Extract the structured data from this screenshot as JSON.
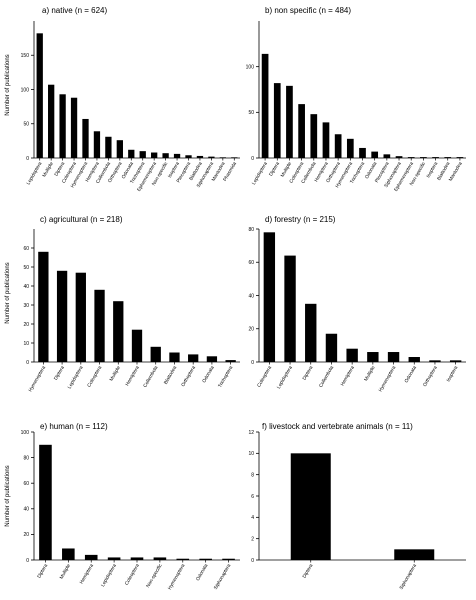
{
  "figure": {
    "ylabel": "Number of publications"
  },
  "colors": {
    "bar": "#000000",
    "axis": "#000000",
    "background": "#ffffff"
  },
  "chart_data": [
    {
      "id": "a",
      "type": "bar",
      "title": "a) native (n = 624)",
      "ylabel": "Number of publications",
      "ylim": [
        0,
        200
      ],
      "yticks": [
        0,
        50,
        100,
        150
      ],
      "categories": [
        "Lepidoptera",
        "Multiple",
        "Diptera",
        "Coleoptera",
        "Hymenoptera",
        "Hemiptera",
        "Collembola",
        "Orthoptera",
        "Odonata",
        "Trichoptera",
        "Ephemeroptera",
        "Non-specific",
        "Isoptera",
        "Plecoptera",
        "Blattodea",
        "Siphonaptera",
        "Mantodea",
        "Phasmida"
      ],
      "values": [
        182,
        107,
        93,
        88,
        57,
        39,
        31,
        26,
        12,
        10,
        8,
        7,
        6,
        4,
        3,
        2,
        1,
        1
      ]
    },
    {
      "id": "b",
      "type": "bar",
      "title": "b) non specific (n = 484)",
      "ylabel": "",
      "ylim": [
        0,
        150
      ],
      "yticks": [
        0,
        50,
        100
      ],
      "categories": [
        "Lepidoptera",
        "Diptera",
        "Multiple",
        "Coleoptera",
        "Collembola",
        "Hemiptera",
        "Orthoptera",
        "Hymenoptera",
        "Trichoptera",
        "Odonata",
        "Plecoptera",
        "Siphonaptera",
        "Ephemeroptera",
        "Non-specific",
        "Isoptera",
        "Blattodea",
        "Mantodea"
      ],
      "values": [
        114,
        82,
        79,
        59,
        48,
        39,
        26,
        21,
        11,
        7,
        4,
        2,
        1,
        1,
        1,
        1,
        1
      ]
    },
    {
      "id": "c",
      "type": "bar",
      "title": "c) agricultural (n = 218)",
      "ylabel": "Number of publications",
      "ylim": [
        0,
        70
      ],
      "yticks": [
        0,
        10,
        20,
        30,
        40,
        50,
        60
      ],
      "categories": [
        "Hymenoptera",
        "Diptera",
        "Lepidoptera",
        "Coleoptera",
        "Multiple",
        "Hemiptera",
        "Collembola",
        "Blattodea",
        "Orthoptera",
        "Odonata",
        "Trichoptera"
      ],
      "values": [
        58,
        48,
        47,
        38,
        32,
        17,
        8,
        5,
        4,
        3,
        1
      ]
    },
    {
      "id": "d",
      "type": "bar",
      "title": "d) forestry (n = 215)",
      "ylabel": "",
      "ylim": [
        0,
        80
      ],
      "yticks": [
        0,
        20,
        40,
        60,
        80
      ],
      "categories": [
        "Coleoptera",
        "Lepidoptera",
        "Diptera",
        "Collembola",
        "Hemiptera",
        "Multiple",
        "Hymenoptera",
        "Odonata",
        "Orthoptera",
        "Isoptera"
      ],
      "values": [
        78,
        64,
        35,
        17,
        8,
        6,
        6,
        3,
        1,
        1
      ]
    },
    {
      "id": "e",
      "type": "bar",
      "title": "e) human (n = 112)",
      "ylabel": "Number of publications",
      "ylim": [
        0,
        100
      ],
      "yticks": [
        0,
        20,
        40,
        60,
        80,
        100
      ],
      "categories": [
        "Diptera",
        "Multiple",
        "Hemiptera",
        "Lepidoptera",
        "Coleoptera",
        "Non-specific",
        "Hymenoptera",
        "Odonata",
        "Siphonaptera"
      ],
      "values": [
        90,
        9,
        4,
        2,
        2,
        2,
        1,
        1,
        1
      ]
    },
    {
      "id": "f",
      "type": "bar",
      "title": "f) livestock and vertebrate animals (n = 11)",
      "ylabel": "",
      "ylim": [
        0,
        12
      ],
      "yticks": [
        0,
        2,
        4,
        6,
        8,
        10,
        12
      ],
      "categories": [
        "Diptera",
        "Siphonaptera"
      ],
      "values": [
        10,
        1
      ]
    }
  ]
}
